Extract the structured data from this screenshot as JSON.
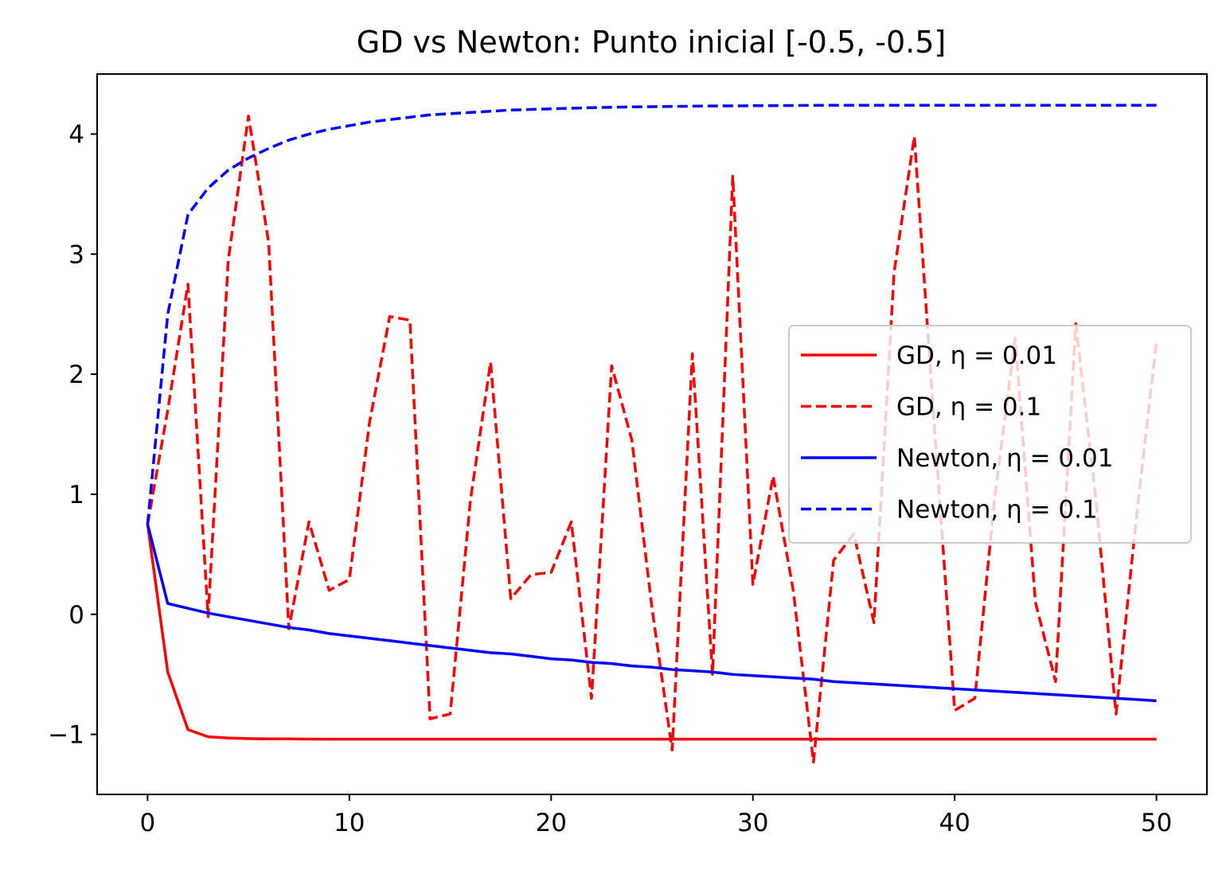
{
  "chart_data": {
    "type": "line",
    "title": "GD vs Newton: Punto inicial [-0.5, -0.5]",
    "xlabel": "",
    "ylabel": "",
    "xlim": [
      -2.5,
      52.5
    ],
    "ylim": [
      -1.5,
      4.5
    ],
    "xticks": [
      0,
      10,
      20,
      30,
      40,
      50
    ],
    "xtick_labels": [
      "0",
      "10",
      "20",
      "30",
      "40",
      "50"
    ],
    "yticks": [
      -1,
      0,
      1,
      2,
      3,
      4
    ],
    "ytick_labels": [
      "−1",
      "0",
      "1",
      "2",
      "3",
      "4"
    ],
    "grid": false,
    "legend_position": "center-right",
    "x": [
      0,
      1,
      2,
      3,
      4,
      5,
      6,
      7,
      8,
      9,
      10,
      11,
      12,
      13,
      14,
      15,
      16,
      17,
      18,
      19,
      20,
      21,
      22,
      23,
      24,
      25,
      26,
      27,
      28,
      29,
      30,
      31,
      32,
      33,
      34,
      35,
      36,
      37,
      38,
      39,
      40,
      41,
      42,
      43,
      44,
      45,
      46,
      47,
      48,
      49,
      50
    ],
    "series": [
      {
        "name": "GD, η = 0.01",
        "color": "#ff0000",
        "dash": "solid",
        "values": [
          0.75,
          -0.48,
          -0.96,
          -1.02,
          -1.03,
          -1.035,
          -1.037,
          -1.038,
          -1.039,
          -1.04,
          -1.04,
          -1.04,
          -1.04,
          -1.04,
          -1.04,
          -1.04,
          -1.04,
          -1.04,
          -1.04,
          -1.04,
          -1.04,
          -1.04,
          -1.04,
          -1.04,
          -1.04,
          -1.04,
          -1.04,
          -1.04,
          -1.04,
          -1.04,
          -1.04,
          -1.04,
          -1.04,
          -1.04,
          -1.04,
          -1.04,
          -1.04,
          -1.04,
          -1.04,
          -1.04,
          -1.04,
          -1.04,
          -1.04,
          -1.04,
          -1.04,
          -1.04,
          -1.04,
          -1.04,
          -1.04,
          -1.04,
          -1.04
        ]
      },
      {
        "name": "GD, η = 0.1",
        "color": "#ff0000",
        "dash": "dashed",
        "values": [
          0.75,
          1.7,
          2.75,
          -0.02,
          2.95,
          4.15,
          3.1,
          -0.12,
          0.77,
          0.2,
          0.29,
          1.6,
          2.48,
          2.45,
          -0.87,
          -0.83,
          0.95,
          2.1,
          0.13,
          0.33,
          0.35,
          0.77,
          -0.7,
          2.07,
          1.45,
          0.05,
          -1.13,
          2.17,
          -0.5,
          3.65,
          0.25,
          1.15,
          0.2,
          -1.23,
          0.45,
          0.67,
          -0.07,
          2.85,
          3.98,
          1.55,
          -0.8,
          -0.7,
          1.0,
          2.3,
          0.1,
          -0.56,
          2.42,
          0.95,
          -0.83,
          0.8,
          2.27
        ]
      },
      {
        "name": "Newton, η = 0.01",
        "color": "#0000ff",
        "dash": "solid",
        "values": [
          0.75,
          0.09,
          0.05,
          0.01,
          -0.02,
          -0.05,
          -0.08,
          -0.11,
          -0.13,
          -0.16,
          -0.18,
          -0.2,
          -0.22,
          -0.24,
          -0.26,
          -0.28,
          -0.3,
          -0.32,
          -0.33,
          -0.35,
          -0.37,
          -0.38,
          -0.4,
          -0.41,
          -0.43,
          -0.44,
          -0.46,
          -0.47,
          -0.48,
          -0.5,
          -0.51,
          -0.52,
          -0.53,
          -0.54,
          -0.56,
          -0.57,
          -0.58,
          -0.59,
          -0.6,
          -0.61,
          -0.62,
          -0.63,
          -0.64,
          -0.65,
          -0.66,
          -0.67,
          -0.68,
          -0.69,
          -0.7,
          -0.71,
          -0.72
        ]
      },
      {
        "name": "Newton, η = 0.1",
        "color": "#0000ff",
        "dash": "dashed",
        "values": [
          0.75,
          2.5,
          3.33,
          3.55,
          3.7,
          3.8,
          3.88,
          3.95,
          4.0,
          4.04,
          4.07,
          4.1,
          4.12,
          4.14,
          4.16,
          4.17,
          4.18,
          4.19,
          4.2,
          4.205,
          4.21,
          4.215,
          4.22,
          4.223,
          4.226,
          4.228,
          4.23,
          4.232,
          4.234,
          4.235,
          4.236,
          4.237,
          4.238,
          4.239,
          4.24,
          4.24,
          4.24,
          4.24,
          4.24,
          4.24,
          4.24,
          4.24,
          4.24,
          4.24,
          4.24,
          4.24,
          4.24,
          4.24,
          4.24,
          4.24,
          4.24
        ]
      }
    ]
  }
}
